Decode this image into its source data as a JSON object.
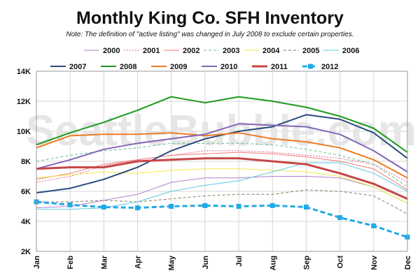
{
  "chart_data": {
    "type": "line",
    "title": "Monthly King Co. SFH Inventory",
    "subtitle": "Note: The definition of \"active listing\" was changed in July 2008 to exclude certain properties.",
    "watermark": "SeattleBubble.com",
    "categories": [
      "Jan",
      "Feb",
      "Mar",
      "Apr",
      "May",
      "Jun",
      "Jul",
      "Aug",
      "Sep",
      "Oct",
      "Nov",
      "Dec"
    ],
    "ylim": [
      2000,
      14000
    ],
    "yticks": [
      2000,
      4000,
      6000,
      8000,
      10000,
      12000,
      14000
    ],
    "ytick_labels": [
      "2K",
      "4K",
      "6K",
      "8K",
      "10K",
      "12K",
      "14K"
    ],
    "grid": true,
    "legend_position": "top",
    "series": [
      {
        "name": "2000",
        "color": "#b07fcf",
        "style": "solid",
        "width": 1,
        "marker": false,
        "values": [
          4900,
          5000,
          5400,
          5800,
          6600,
          6900,
          6900,
          7000,
          7000,
          6900,
          6300,
          5200
        ]
      },
      {
        "name": "2001",
        "color": "#e35d8f",
        "style": "dotted",
        "width": 1,
        "marker": false,
        "values": [
          6600,
          7000,
          7700,
          8100,
          8400,
          8700,
          8700,
          8600,
          8400,
          8200,
          7800,
          6600
        ]
      },
      {
        "name": "2002",
        "color": "#f07a7a",
        "style": "solid",
        "width": 1,
        "marker": false,
        "values": [
          6800,
          7200,
          7800,
          8100,
          8400,
          8500,
          8600,
          8500,
          8300,
          8000,
          7500,
          6100
        ]
      },
      {
        "name": "2003",
        "color": "#5fc48a",
        "style": "dashed",
        "width": 1,
        "marker": false,
        "values": [
          8000,
          8400,
          8700,
          8900,
          9200,
          9200,
          9200,
          9100,
          8800,
          8400,
          7800,
          6300
        ]
      },
      {
        "name": "2004",
        "color": "#f2e94a",
        "style": "solid",
        "width": 1,
        "marker": false,
        "values": [
          6900,
          7100,
          7300,
          7200,
          7400,
          7500,
          7500,
          7400,
          7300,
          7000,
          6300,
          5200
        ]
      },
      {
        "name": "2005",
        "color": "#8b7a5a",
        "style": "dashed",
        "width": 1,
        "marker": false,
        "values": [
          5300,
          5300,
          5400,
          5300,
          5500,
          5700,
          5800,
          5800,
          6100,
          6000,
          5700,
          4500
        ]
      },
      {
        "name": "2006",
        "color": "#5fc8e0",
        "style": "solid",
        "width": 1,
        "marker": false,
        "values": [
          4800,
          4800,
          4900,
          5300,
          6000,
          6400,
          6700,
          7300,
          7900,
          7900,
          7200,
          6000
        ]
      },
      {
        "name": "2007",
        "color": "#2a4a7e",
        "style": "solid",
        "width": 2,
        "marker": false,
        "values": [
          5900,
          6200,
          6800,
          7600,
          8700,
          9500,
          10000,
          10300,
          11100,
          10800,
          9900,
          8200
        ]
      },
      {
        "name": "2008",
        "color": "#1b9a1b",
        "style": "solid",
        "width": 2,
        "marker": false,
        "values": [
          9100,
          9900,
          10600,
          11400,
          12300,
          11900,
          12300,
          12000,
          11600,
          11000,
          10200,
          8600
        ]
      },
      {
        "name": "2009",
        "color": "#ee7a22",
        "style": "solid",
        "width": 2,
        "marker": false,
        "values": [
          8900,
          9700,
          9800,
          9800,
          9900,
          9700,
          9900,
          9500,
          9300,
          8900,
          8100,
          6900
        ]
      },
      {
        "name": "2010",
        "color": "#8465b8",
        "style": "solid",
        "width": 2,
        "marker": false,
        "values": [
          7500,
          8100,
          8800,
          9200,
          9500,
          9800,
          10500,
          10400,
          10300,
          9800,
          8700,
          7300
        ]
      },
      {
        "name": "2011",
        "color": "#c64646",
        "style": "solid",
        "width": 3,
        "marker": false,
        "values": [
          7500,
          7600,
          7600,
          8000,
          8100,
          8200,
          8200,
          8000,
          7800,
          7200,
          6500,
          5500
        ]
      },
      {
        "name": "2012",
        "color": "#22a9e6",
        "style": "dashed",
        "width": 3,
        "marker": true,
        "values": [
          5300,
          5100,
          4950,
          4900,
          5000,
          5050,
          5000,
          5050,
          4950,
          4250,
          3700,
          2950
        ]
      }
    ]
  }
}
